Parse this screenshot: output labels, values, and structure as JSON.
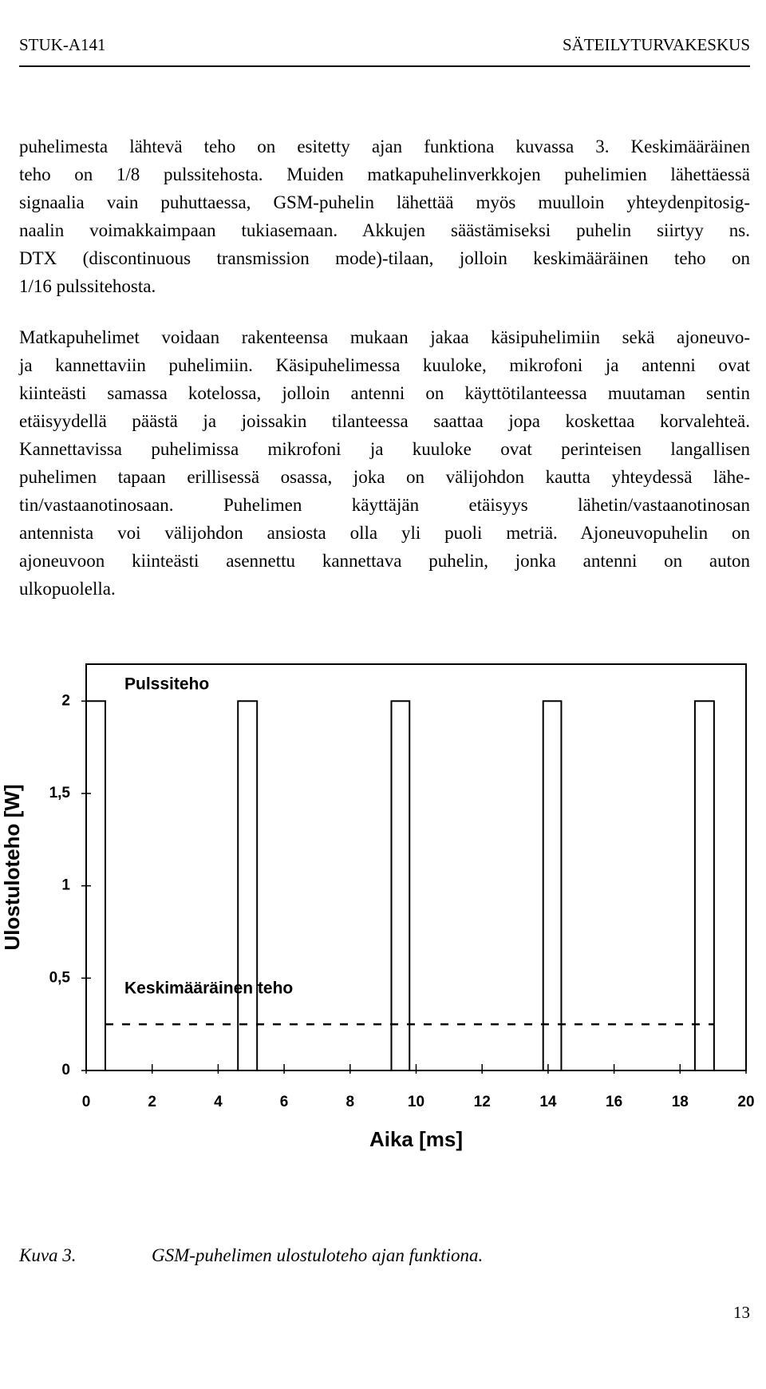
{
  "header": {
    "left": "STUK-A141",
    "right": "SÄTEILYTURVAKESKUS"
  },
  "paragraphs": [
    [
      "puhelimesta lähtevä teho on esitetty ajan funktiona kuvassa 3. Keskimääräinen",
      "teho on 1/8 pulssitehosta. Muiden matkapuhelinverkkojen puhelimien lähettäessä",
      "signaalia vain puhuttaessa, GSM-puhelin lähettää myös muulloin yhteydenpitosig-",
      "naalin voimakkaimpaan tukiasemaan. Akkujen säästämiseksi puhelin siirtyy ns.",
      "DTX (discontinuous transmission mode)-tilaan, jolloin keskimääräinen teho on",
      "1/16 pulssitehosta."
    ],
    [
      "Matkapuhelimet voidaan rakenteensa mukaan jakaa käsipuhelimiin sekä ajoneuvo-",
      "ja kannettaviin puhelimiin. Käsipuhelimessa kuuloke, mikrofoni ja antenni ovat",
      "kiinteästi samassa kotelossa, jolloin antenni on käyttötilanteessa muutaman sentin",
      "etäisyydellä päästä ja joissakin tilanteessa saattaa jopa koskettaa korvalehteä.",
      "Kannettavissa puhelimissa mikrofoni ja kuuloke ovat perinteisen langallisen",
      "puhelimen tapaan erillisessä osassa, joka on välijohdon kautta yhteydessä lähe-",
      "tin/vastaanotinosaan. Puhelimen käyttäjän etäisyys lähetin/vastaanotinosan",
      "antennista voi välijohdon ansiosta olla yli puoli metriä. Ajoneuvopuhelin on",
      "ajoneuvoon kiinteästi asennettu kannettava puhelin, jonka antenni on auton",
      "ulkopuolella."
    ]
  ],
  "chart_data": {
    "type": "line",
    "x_label": "Aika [ms]",
    "y_label": "Ulostuloteho [W]",
    "xlim": [
      0,
      20
    ],
    "xticks": [
      0,
      2,
      4,
      6,
      8,
      10,
      12,
      14,
      16,
      18,
      20
    ],
    "ylim": [
      0,
      2.2
    ],
    "yticks": [
      0,
      {
        "value": 0.5,
        "label": "0,5"
      },
      1,
      {
        "value": 1.5,
        "label": "1,5"
      },
      2
    ],
    "grid": false,
    "series": [
      {
        "name": "Pulssiteho",
        "color": "#000000",
        "dash": false,
        "x": [
          0,
          0.58,
          0.58,
          4.6,
          4.6,
          5.18,
          5.18,
          9.25,
          9.25,
          9.8,
          9.8,
          13.85,
          13.85,
          14.4,
          14.4,
          18.45,
          18.45,
          19.03,
          19.03,
          20
        ],
        "values": [
          2,
          2,
          0,
          0,
          2,
          2,
          0,
          0,
          2,
          2,
          0,
          0,
          2,
          2,
          0,
          0,
          2,
          2,
          0,
          0
        ]
      },
      {
        "name": "Keskimääräinen teho",
        "color": "#000000",
        "dash": true,
        "x": [
          0.58,
          19.03
        ],
        "values": [
          0.25,
          0.25
        ]
      }
    ]
  },
  "caption": {
    "label": "Kuva 3.",
    "text": "GSM-puhelimen ulostuloteho ajan funktiona."
  },
  "page_number": "13"
}
